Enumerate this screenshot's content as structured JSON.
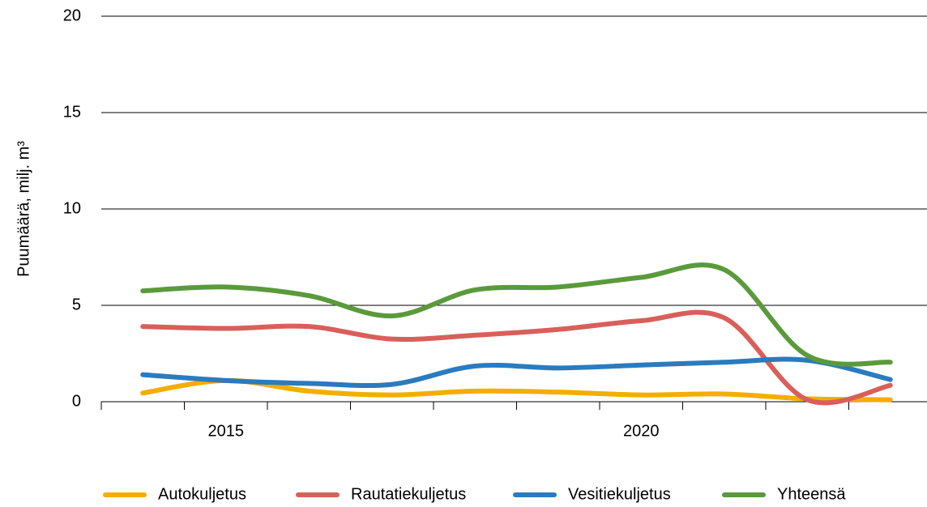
{
  "chart_data": {
    "type": "line",
    "y_label": "Puumäärä, milj. m³",
    "categories": [
      null,
      "2015",
      null,
      null,
      null,
      null,
      "2020",
      null,
      null,
      null
    ],
    "series": [
      {
        "name": "Autokuljetus",
        "color": "#f5ad00",
        "values": [
          0.45,
          1.1,
          0.55,
          0.35,
          0.55,
          0.5,
          0.35,
          0.4,
          0.15,
          0.1
        ]
      },
      {
        "name": "Rautatiekuljetus",
        "color": "#d95f5a",
        "values": [
          3.9,
          3.8,
          3.9,
          3.25,
          3.45,
          3.75,
          4.2,
          4.35,
          0.1,
          0.85
        ]
      },
      {
        "name": "Vesitiekuljetus",
        "color": "#2a7bbf",
        "values": [
          1.4,
          1.1,
          0.95,
          0.9,
          1.85,
          1.75,
          1.9,
          2.05,
          2.15,
          1.15
        ]
      },
      {
        "name": "Yhteensä",
        "color": "#5a9a3c",
        "values": [
          5.75,
          5.95,
          5.5,
          4.45,
          5.8,
          5.95,
          6.45,
          6.85,
          2.4,
          2.05
        ]
      }
    ],
    "ylim": [
      0,
      20
    ],
    "yticks": [
      0,
      5,
      10,
      15,
      20
    ],
    "grid": true,
    "legend": "bottom"
  }
}
